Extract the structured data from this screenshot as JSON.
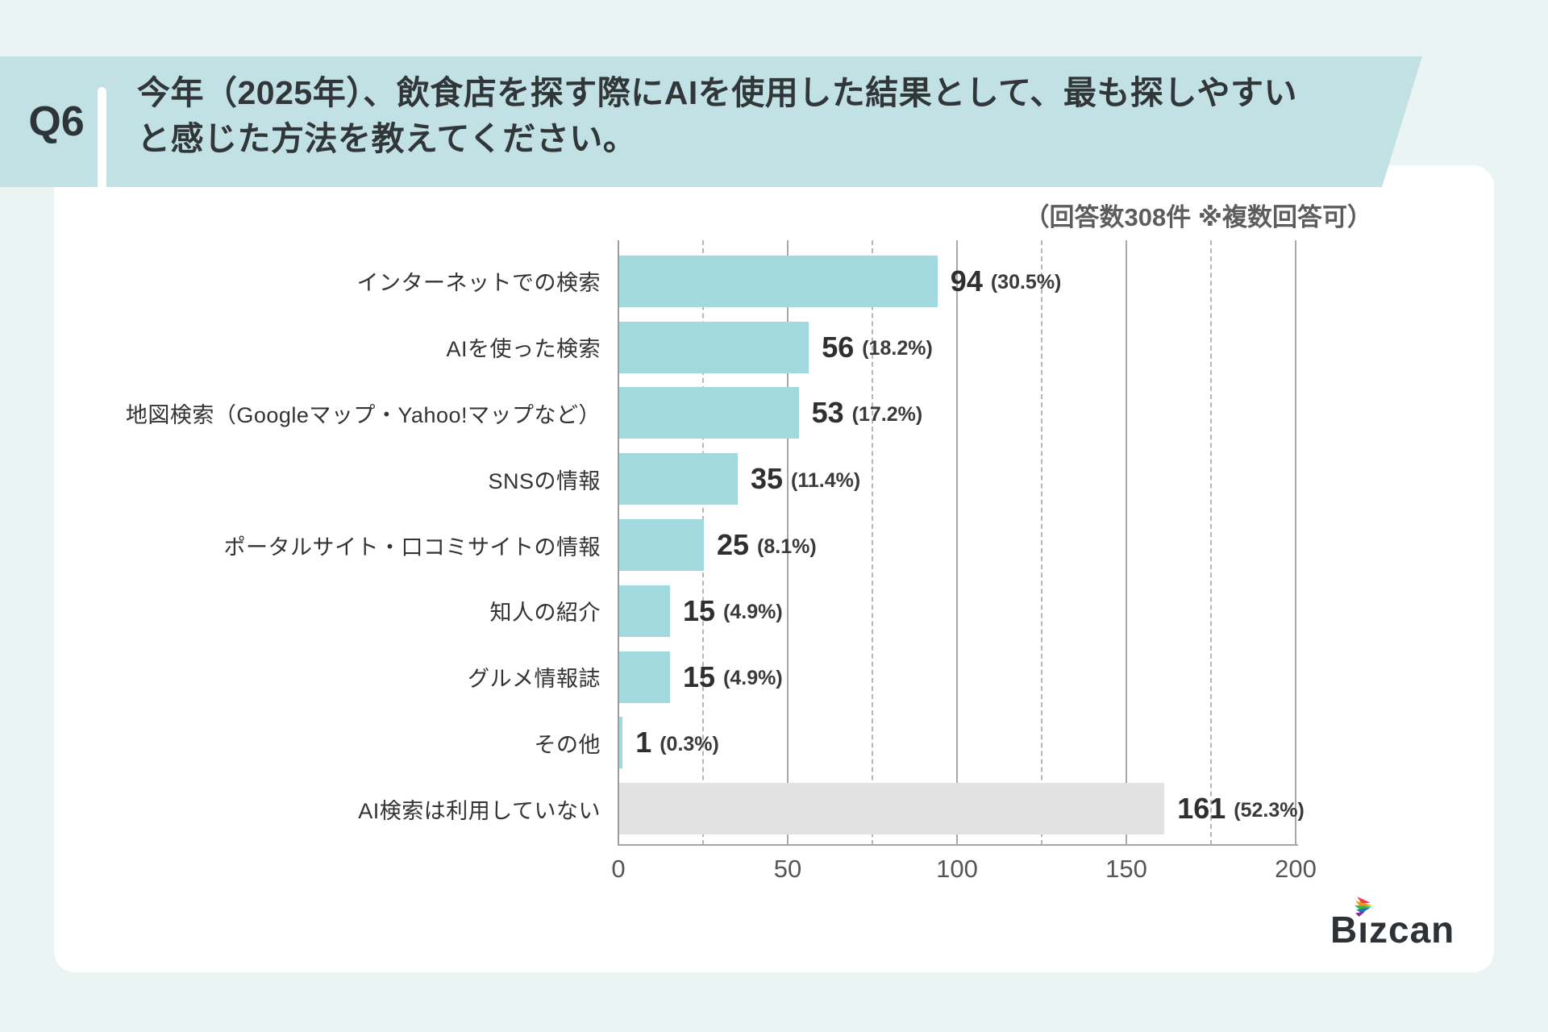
{
  "header": {
    "q_label": "Q6",
    "title_lines": [
      "今年（2025年）、飲食店を探す際にAIを使用した結果として、最も探しやすい",
      "と感じた方法を教えてください。"
    ]
  },
  "note": "（回答数308件 ※複数回答可）",
  "chart_data": {
    "type": "bar",
    "orientation": "horizontal",
    "title": "",
    "xlabel": "",
    "ylabel": "",
    "xlim": [
      0,
      200
    ],
    "x_ticks": [
      0,
      50,
      100,
      150,
      200
    ],
    "grid": "vertical; solid lines at multiples of 50, dashed lines at 25/75/125/175",
    "legend": "none",
    "categories": [
      "インターネットでの検索",
      "AIを使った検索",
      "地図検索（Googleマップ・Yahoo!マップなど）",
      "SNSの情報",
      "ポータルサイト・口コミサイトの情報",
      "知人の紹介",
      "グルメ情報誌",
      "その他",
      "AI検索は利用していない"
    ],
    "values": [
      94,
      56,
      53,
      35,
      25,
      15,
      15,
      1,
      161
    ],
    "percents": [
      "30.5%",
      "18.2%",
      "17.2%",
      "11.4%",
      "8.1%",
      "4.9%",
      "4.9%",
      "0.3%",
      "52.3%"
    ],
    "value_label_format": "94 (30.5%)",
    "bar_colors": [
      "#a2d9de",
      "#a2d9de",
      "#a2d9de",
      "#a2d9de",
      "#a2d9de",
      "#a2d9de",
      "#a2d9de",
      "#a2d9de",
      "#e2e2e2"
    ]
  },
  "colors": {
    "page_background": "#e9f4f3",
    "banner": "#c2e1e5",
    "card": "#ffffff",
    "bar_teal": "#a2d9de",
    "bar_gray": "#e2e2e2",
    "text_dark": "#313639"
  },
  "logo": {
    "text": "Bizcan",
    "mark": "multicolor-arrow"
  }
}
